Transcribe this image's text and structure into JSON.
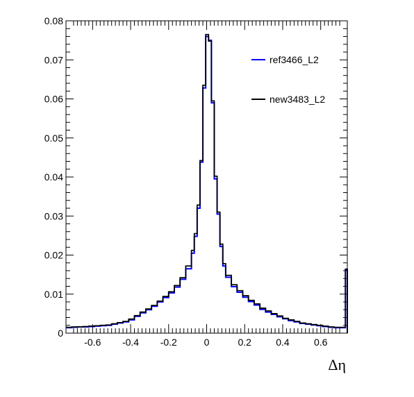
{
  "chart_data": {
    "type": "line",
    "style": "step-histogram",
    "title": "",
    "xlabel": "Δη",
    "ylabel": "",
    "xlim": [
      -0.74,
      0.74
    ],
    "ylim": [
      0,
      0.08
    ],
    "x_ticks": [
      "-0.6",
      "-0.4",
      "-0.2",
      "0",
      "0.2",
      "0.4",
      "0.6"
    ],
    "y_ticks": [
      "0",
      "0.01",
      "0.02",
      "0.03",
      "0.04",
      "0.05",
      "0.06",
      "0.07",
      "0.08"
    ],
    "grid": false,
    "legend_placement": "top-right",
    "series": [
      {
        "name": "ref3466_L2",
        "color": "#0000ff",
        "x": [
          -0.74,
          -0.71,
          -0.68,
          -0.65,
          -0.62,
          -0.59,
          -0.56,
          -0.53,
          -0.5,
          -0.47,
          -0.44,
          -0.41,
          -0.38,
          -0.35,
          -0.32,
          -0.29,
          -0.26,
          -0.23,
          -0.2,
          -0.17,
          -0.14,
          -0.11,
          -0.08,
          -0.065,
          -0.05,
          -0.035,
          -0.02,
          -0.005,
          0.01,
          0.025,
          0.04,
          0.055,
          0.07,
          0.085,
          0.1,
          0.13,
          0.16,
          0.19,
          0.22,
          0.25,
          0.28,
          0.31,
          0.34,
          0.37,
          0.4,
          0.43,
          0.46,
          0.49,
          0.52,
          0.55,
          0.58,
          0.61,
          0.64,
          0.67,
          0.7,
          0.73
        ],
        "values": [
          0.0014,
          0.0015,
          0.0016,
          0.0016,
          0.0017,
          0.0018,
          0.0019,
          0.002,
          0.0023,
          0.0026,
          0.0029,
          0.0034,
          0.0043,
          0.0052,
          0.006,
          0.0069,
          0.008,
          0.0091,
          0.0103,
          0.0118,
          0.0138,
          0.0165,
          0.0205,
          0.0248,
          0.032,
          0.0438,
          0.0628,
          0.076,
          0.075,
          0.059,
          0.0395,
          0.0305,
          0.0222,
          0.0172,
          0.0143,
          0.0119,
          0.0105,
          0.0092,
          0.0081,
          0.0072,
          0.0061,
          0.0054,
          0.0048,
          0.0042,
          0.0037,
          0.0032,
          0.0029,
          0.0025,
          0.0023,
          0.0021,
          0.0019,
          0.0017,
          0.0015,
          0.0014,
          0.0014,
          0.0162
        ]
      },
      {
        "name": "new3483_L2",
        "color": "#000000",
        "x": [
          -0.74,
          -0.71,
          -0.68,
          -0.65,
          -0.62,
          -0.59,
          -0.56,
          -0.53,
          -0.5,
          -0.47,
          -0.44,
          -0.41,
          -0.38,
          -0.35,
          -0.32,
          -0.29,
          -0.26,
          -0.23,
          -0.2,
          -0.17,
          -0.14,
          -0.11,
          -0.08,
          -0.065,
          -0.05,
          -0.035,
          -0.02,
          -0.005,
          0.01,
          0.025,
          0.04,
          0.055,
          0.07,
          0.085,
          0.1,
          0.13,
          0.16,
          0.19,
          0.22,
          0.25,
          0.28,
          0.31,
          0.34,
          0.37,
          0.4,
          0.43,
          0.46,
          0.49,
          0.52,
          0.55,
          0.58,
          0.61,
          0.64,
          0.67,
          0.7,
          0.73
        ],
        "values": [
          0.0015,
          0.0016,
          0.0016,
          0.0017,
          0.0018,
          0.0019,
          0.002,
          0.0021,
          0.0024,
          0.0027,
          0.003,
          0.0036,
          0.0045,
          0.0054,
          0.0062,
          0.0071,
          0.0082,
          0.0094,
          0.0106,
          0.0122,
          0.0142,
          0.0172,
          0.0212,
          0.0255,
          0.0328,
          0.0442,
          0.0635,
          0.0765,
          0.0748,
          0.0595,
          0.0402,
          0.031,
          0.0228,
          0.0178,
          0.0148,
          0.0124,
          0.0109,
          0.0096,
          0.0084,
          0.0075,
          0.0064,
          0.0057,
          0.005,
          0.0044,
          0.0038,
          0.0034,
          0.003,
          0.0026,
          0.0024,
          0.0022,
          0.002,
          0.0018,
          0.0016,
          0.0015,
          0.0015,
          0.0164
        ]
      }
    ]
  }
}
